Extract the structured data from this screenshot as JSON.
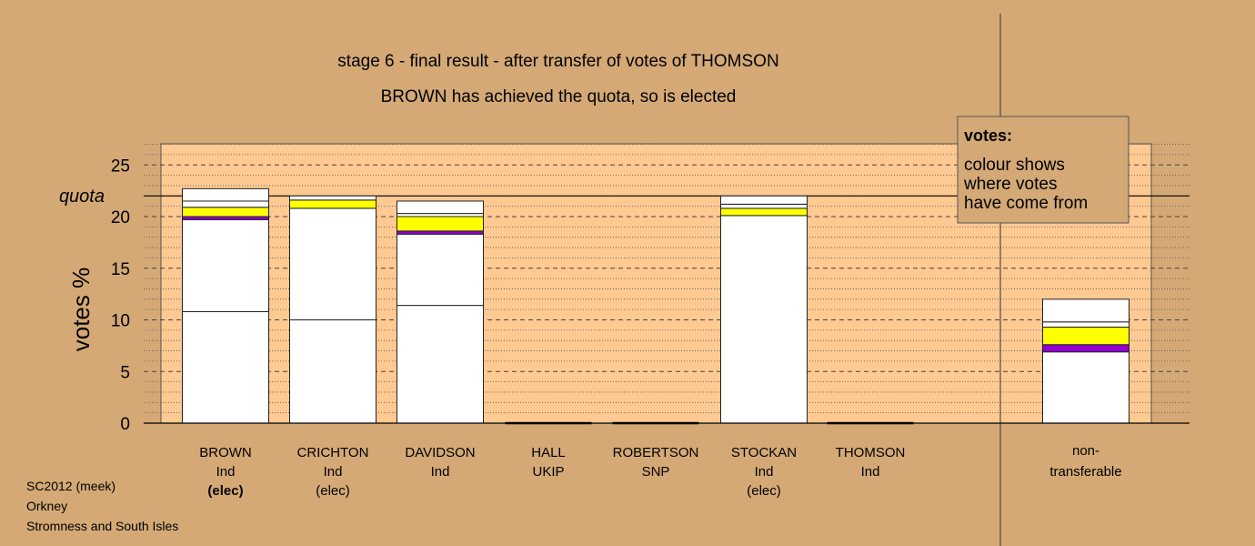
{
  "chart_data": {
    "type": "bar",
    "stacked": true,
    "title": "stage 6 - final result - after transfer of votes of THOMSON",
    "subtitle": "BROWN has achieved the quota, so is elected",
    "ylabel": "votes %",
    "ylim": [
      0,
      27
    ],
    "yticks": [
      0,
      5,
      10,
      15,
      20,
      25
    ],
    "quota": 22,
    "quota_label": "quota",
    "grid": "dashed major, dotted minor",
    "colors": {
      "background": "#d4a976",
      "plot_area": "#ffc992",
      "first_pref": "#ffffff",
      "ukip": "#9400d3",
      "snp": "#ffff00"
    },
    "candidates": [
      {
        "name": "BROWN",
        "party": "Ind",
        "status": "(elec)",
        "status_bold": true,
        "segments": [
          {
            "from": "first",
            "value": 10.8,
            "color": "#ffffff"
          },
          {
            "from": "second",
            "value": 8.9,
            "color": "#ffffff"
          },
          {
            "from": "UKIP",
            "value": 0.3,
            "color": "#9400d3"
          },
          {
            "from": "SNP",
            "value": 0.9,
            "color": "#ffff00"
          },
          {
            "from": "other",
            "value": 0.6,
            "color": "#ffffff"
          },
          {
            "from": "other",
            "value": 1.2,
            "color": "#ffffff"
          }
        ]
      },
      {
        "name": "CRICHTON",
        "party": "Ind",
        "status": "(elec)",
        "status_bold": false,
        "segments": [
          {
            "from": "first",
            "value": 10.0,
            "color": "#ffffff"
          },
          {
            "from": "second",
            "value": 10.8,
            "color": "#ffffff"
          },
          {
            "from": "SNP",
            "value": 0.8,
            "color": "#ffff00"
          },
          {
            "from": "other",
            "value": 0.4,
            "color": "#ffffff"
          }
        ]
      },
      {
        "name": "DAVIDSON",
        "party": "Ind",
        "status": "",
        "status_bold": false,
        "segments": [
          {
            "from": "first",
            "value": 11.4,
            "color": "#ffffff"
          },
          {
            "from": "second",
            "value": 6.9,
            "color": "#ffffff"
          },
          {
            "from": "UKIP",
            "value": 0.3,
            "color": "#9400d3"
          },
          {
            "from": "SNP",
            "value": 1.4,
            "color": "#ffff00"
          },
          {
            "from": "other",
            "value": 0.3,
            "color": "#ffffff"
          },
          {
            "from": "other",
            "value": 1.2,
            "color": "#ffffff"
          }
        ]
      },
      {
        "name": "HALL",
        "party": "UKIP",
        "status": "",
        "status_bold": false,
        "segments": []
      },
      {
        "name": "ROBERTSON",
        "party": "SNP",
        "status": "",
        "status_bold": false,
        "segments": []
      },
      {
        "name": "STOCKAN",
        "party": "Ind",
        "status": "(elec)",
        "status_bold": false,
        "segments": [
          {
            "from": "first",
            "value": 20.1,
            "color": "#ffffff"
          },
          {
            "from": "SNP",
            "value": 0.7,
            "color": "#ffff00"
          },
          {
            "from": "other",
            "value": 0.4,
            "color": "#ffffff"
          },
          {
            "from": "other",
            "value": 0.8,
            "color": "#ffffff"
          }
        ]
      },
      {
        "name": "THOMSON",
        "party": "Ind",
        "status": "",
        "status_bold": false,
        "segments": []
      }
    ],
    "nontransferable": {
      "label_line1": "non-",
      "label_line2": "transferable",
      "segments": [
        {
          "from": "other",
          "value": 6.9,
          "color": "#ffffff"
        },
        {
          "from": "UKIP",
          "value": 0.7,
          "color": "#9400d3"
        },
        {
          "from": "SNP",
          "value": 1.7,
          "color": "#ffff00"
        },
        {
          "from": "other",
          "value": 0.5,
          "color": "#ffffff"
        },
        {
          "from": "other",
          "value": 2.2,
          "color": "#ffffff"
        }
      ]
    }
  },
  "legend": {
    "title": "votes:",
    "lines": [
      "colour shows",
      "where votes",
      "have come from"
    ]
  },
  "footer": {
    "line1": "SC2012 (meek)",
    "line2": "Orkney",
    "line3": "Stromness and South Isles"
  }
}
